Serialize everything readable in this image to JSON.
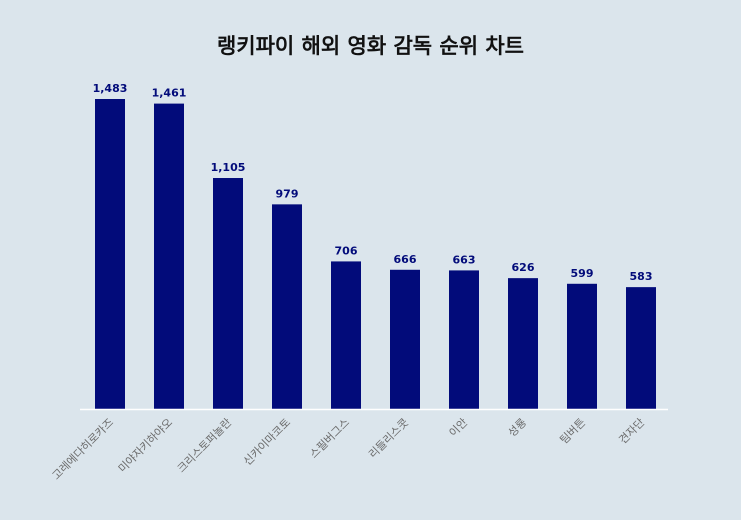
{
  "chart_data": {
    "type": "bar",
    "title": "랭키파이 해외 영화 감독 순위 차트",
    "categories": [
      "고레에다히로카즈",
      "미야자키하야오",
      "크리스토퍼놀란",
      "신카이마코토",
      "스필버그스",
      "리들리스콧",
      "이안",
      "성룡",
      "팀버튼",
      "견자단"
    ],
    "values": [
      1483,
      1461,
      1105,
      979,
      706,
      666,
      663,
      626,
      599,
      583
    ],
    "value_labels": [
      "1,483",
      "1,461",
      "1,105",
      "979",
      "706",
      "666",
      "663",
      "626",
      "599",
      "583"
    ],
    "xlabel": "",
    "ylabel": "",
    "ylim": [
      0,
      1483
    ],
    "grid": false,
    "colors": {
      "bar": "#020b7a",
      "value_label": "#020b7a",
      "tick_label": "#6b6b6b",
      "axis": "#ffffff",
      "background": "#dbe5ec"
    }
  }
}
